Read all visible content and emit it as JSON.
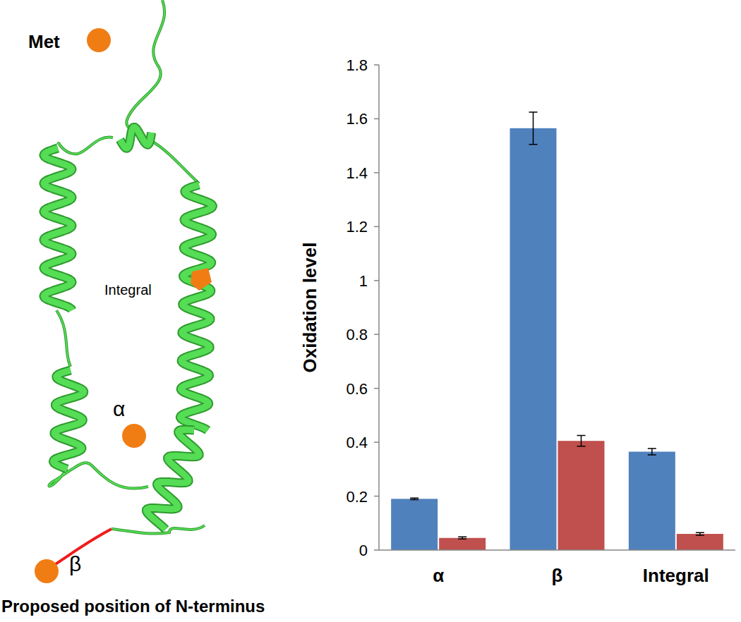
{
  "chart_data": {
    "type": "bar",
    "y_label": "Oxidation level",
    "categories": [
      "α",
      "β",
      "Integral"
    ],
    "series": [
      {
        "color": "#4f81bd",
        "values": [
          0.19,
          1.565,
          0.365
        ],
        "errors": [
          0.003,
          0.06,
          0.012
        ]
      },
      {
        "color": "#c0504d",
        "values": [
          0.045,
          0.405,
          0.06
        ],
        "errors": [
          0.004,
          0.02,
          0.005
        ]
      }
    ],
    "ylim": [
      0,
      1.8
    ],
    "yticks": [
      0,
      0.2,
      0.4,
      0.6,
      0.8,
      1,
      1.2,
      1.4,
      1.6,
      1.8
    ],
    "grid": false
  },
  "diagram": {
    "labels": [
      "Met",
      "Integral",
      "α",
      "β",
      "Proposed position of N-terminus"
    ]
  }
}
